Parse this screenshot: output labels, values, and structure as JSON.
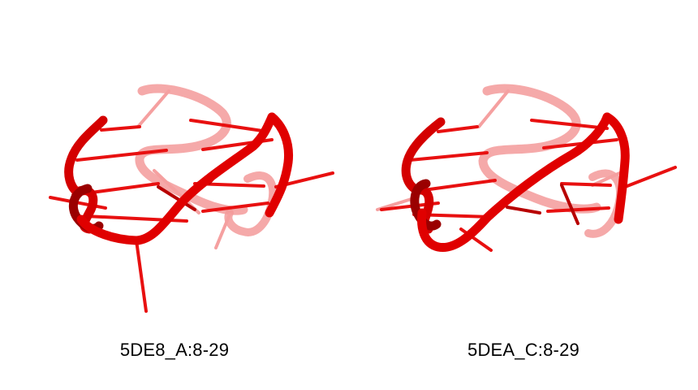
{
  "panels": [
    {
      "label": "5DE8_A:8-29"
    },
    {
      "label": "5DEA_C:8-29"
    }
  ],
  "colors": {
    "backbone": "#e00000",
    "backbone_dark": "#8a0000",
    "backbone_back": "#f39a9a",
    "rung": "#e81010",
    "rung_back": "#f5a0a0"
  }
}
